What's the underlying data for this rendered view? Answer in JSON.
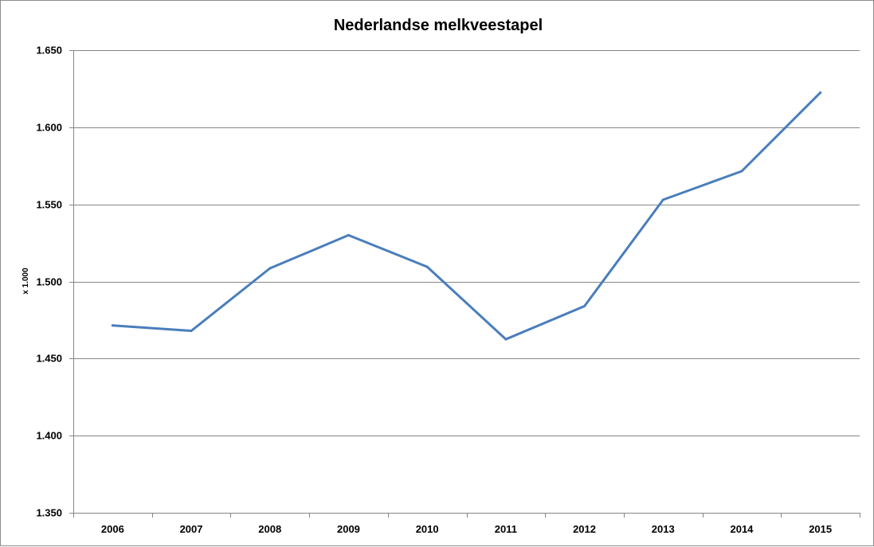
{
  "chart_data": {
    "type": "line",
    "title": "Nederlandse melkveestapel",
    "xlabel": "",
    "ylabel": "x 1.000",
    "categories": [
      "2006",
      "2007",
      "2008",
      "2009",
      "2010",
      "2011",
      "2012",
      "2013",
      "2014",
      "2015"
    ],
    "series": [
      {
        "values": [
          1471.5,
          1468,
          1508.5,
          1530,
          1509.5,
          1462.5,
          1484,
          1553,
          1571.5,
          1622.5
        ],
        "color": "#4a7ebb"
      }
    ],
    "ylim": [
      1350,
      1650
    ],
    "yticks": [
      1350,
      1400,
      1450,
      1500,
      1550,
      1600,
      1650
    ],
    "ytick_labels": [
      "1.350",
      "1.400",
      "1.450",
      "1.500",
      "1.550",
      "1.600",
      "1.650"
    ],
    "grid": "horizontal",
    "gridline_color": "#868686",
    "legend": "none"
  }
}
